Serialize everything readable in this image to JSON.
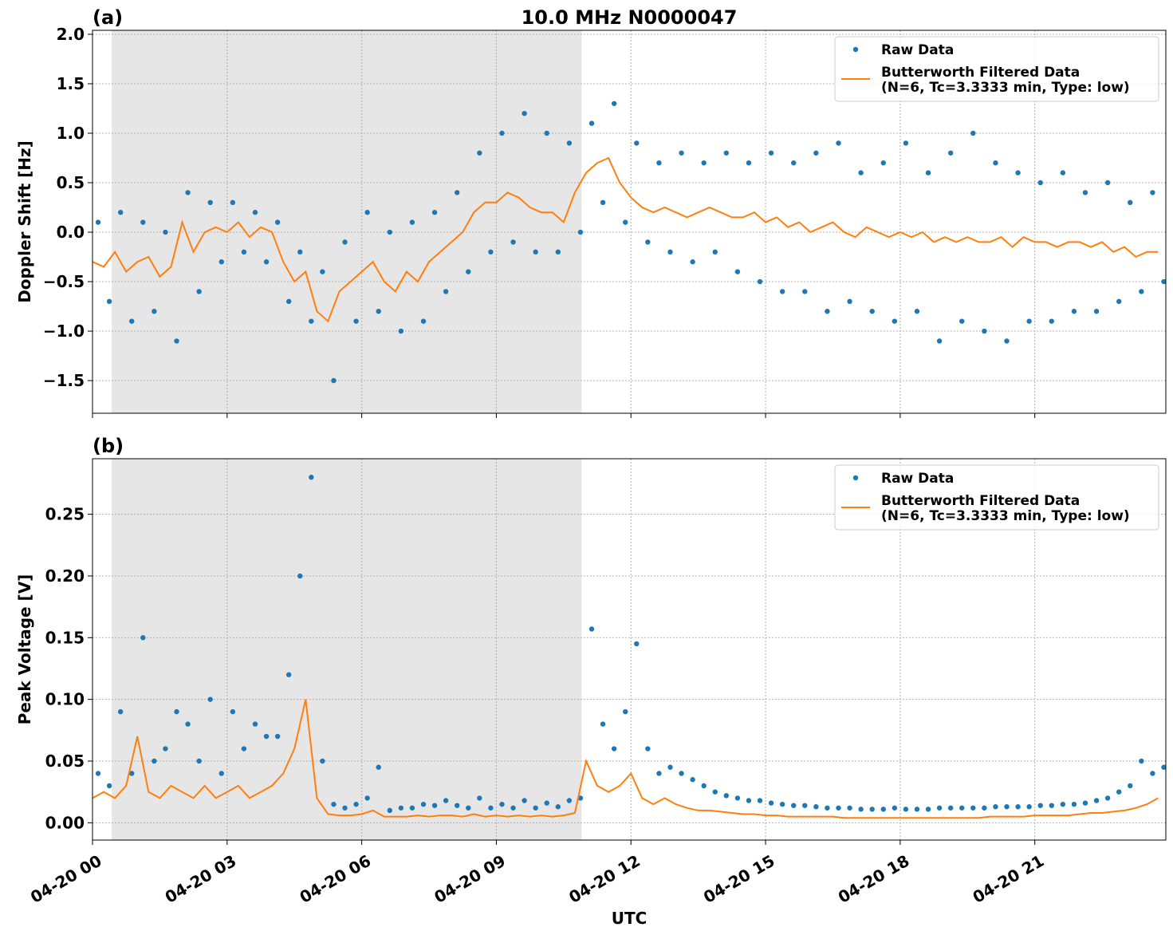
{
  "chart_data": [
    {
      "type": "scatter-line",
      "panel_label": "(a)",
      "title": "10.0 MHz N0000047",
      "ylabel": "Doppler Shift [Hz]",
      "xlim": [
        0,
        23.92
      ],
      "ylim": [
        -1.83,
        2.04
      ],
      "xticks": [
        0,
        3,
        6,
        9,
        12,
        15,
        18,
        21
      ],
      "yticks": [
        {
          "value": -1.5,
          "label": "−1.5"
        },
        {
          "value": -1,
          "label": "−1.0"
        },
        {
          "value": -0.5,
          "label": "−0.5"
        },
        {
          "value": 0,
          "label": "0.0"
        },
        0.5,
        {
          "value": 1,
          "label": "1.0"
        },
        1.5,
        {
          "value": 2,
          "label": "2.0"
        }
      ],
      "grid": true,
      "shaded_span": [
        0.43,
        10.9
      ],
      "shade_color": "#e6e6e6",
      "legend": "upper right",
      "series": [
        {
          "name": "Raw Data",
          "color": "#1f77b4",
          "style": "dots",
          "x": [
            0.125,
            0.375,
            0.625,
            0.875,
            1.125,
            1.375,
            1.625,
            1.875,
            2.125,
            2.375,
            2.625,
            2.875,
            3.125,
            3.375,
            3.625,
            3.875,
            4.125,
            4.375,
            4.625,
            4.875,
            5.125,
            5.375,
            5.625,
            5.875,
            6.125,
            6.375,
            6.625,
            6.875,
            7.125,
            7.375,
            7.625,
            7.875,
            8.125,
            8.375,
            8.625,
            8.875,
            9.125,
            9.375,
            9.625,
            9.875,
            10.125,
            10.375,
            10.625,
            10.875,
            11.125,
            11.375,
            11.625,
            11.875,
            12.125,
            12.375,
            12.625,
            12.875,
            13.125,
            13.375,
            13.625,
            13.875,
            14.125,
            14.375,
            14.625,
            14.875,
            15.125,
            15.375,
            15.625,
            15.875,
            16.125,
            16.375,
            16.625,
            16.875,
            17.125,
            17.375,
            17.625,
            17.875,
            18.125,
            18.375,
            18.625,
            18.875,
            19.125,
            19.375,
            19.625,
            19.875,
            20.125,
            20.375,
            20.625,
            20.875,
            21.125,
            21.375,
            21.625,
            21.875,
            22.125,
            22.375,
            22.625,
            22.875,
            23.125,
            23.375,
            23.625,
            23.875
          ],
          "values": [
            0.1,
            -0.7,
            0.2,
            -0.9,
            0.1,
            -0.8,
            0.0,
            -1.1,
            0.4,
            -0.6,
            0.3,
            -0.3,
            0.3,
            -0.2,
            0.2,
            -0.3,
            0.1,
            -0.7,
            -0.2,
            -0.9,
            -0.4,
            -1.5,
            -0.1,
            -0.9,
            0.2,
            -0.8,
            0.0,
            -1.0,
            0.1,
            -0.9,
            0.2,
            -0.6,
            0.4,
            -0.4,
            0.8,
            -0.2,
            1.0,
            -0.1,
            1.2,
            -0.2,
            1.0,
            -0.2,
            0.9,
            0.0,
            1.1,
            0.3,
            1.3,
            0.1,
            0.9,
            -0.1,
            0.7,
            -0.2,
            0.8,
            -0.3,
            0.7,
            -0.2,
            0.8,
            -0.4,
            0.7,
            -0.5,
            0.8,
            -0.6,
            0.7,
            -0.6,
            0.8,
            -0.8,
            0.9,
            -0.7,
            0.6,
            -0.8,
            0.7,
            -0.9,
            0.9,
            -0.8,
            0.6,
            -1.1,
            0.8,
            -0.9,
            1.0,
            -1.0,
            0.7,
            -1.1,
            0.6,
            -0.9,
            0.5,
            -0.9,
            0.6,
            -0.8,
            0.4,
            -0.8,
            0.5,
            -0.7,
            0.3,
            -0.6,
            0.4,
            -0.5
          ]
        },
        {
          "name": "Butterworth Filtered Data\n(N=6, Tc=3.3333 min, Type: low)",
          "color": "#ff7f0e",
          "style": "line",
          "x": [
            0,
            0.25,
            0.5,
            0.75,
            1,
            1.25,
            1.5,
            1.75,
            2,
            2.25,
            2.5,
            2.75,
            3,
            3.25,
            3.5,
            3.75,
            4,
            4.25,
            4.5,
            4.75,
            5,
            5.25,
            5.5,
            5.75,
            6,
            6.25,
            6.5,
            6.75,
            7,
            7.25,
            7.5,
            7.75,
            8,
            8.25,
            8.5,
            8.75,
            9,
            9.25,
            9.5,
            9.75,
            10,
            10.25,
            10.5,
            10.75,
            11,
            11.25,
            11.5,
            11.75,
            12,
            12.25,
            12.5,
            12.75,
            13,
            13.25,
            13.5,
            13.75,
            14,
            14.25,
            14.5,
            14.75,
            15,
            15.25,
            15.5,
            15.75,
            16,
            16.25,
            16.5,
            16.75,
            17,
            17.25,
            17.5,
            17.75,
            18,
            18.25,
            18.5,
            18.75,
            19,
            19.25,
            19.5,
            19.75,
            20,
            20.25,
            20.5,
            20.75,
            21,
            21.25,
            21.5,
            21.75,
            22,
            22.25,
            22.5,
            22.75,
            23,
            23.25,
            23.5,
            23.75
          ],
          "values": [
            -0.3,
            -0.35,
            -0.2,
            -0.4,
            -0.3,
            -0.25,
            -0.45,
            -0.35,
            0.1,
            -0.2,
            0.0,
            0.05,
            0.0,
            0.1,
            -0.05,
            0.05,
            0.0,
            -0.3,
            -0.5,
            -0.4,
            -0.8,
            -0.9,
            -0.6,
            -0.5,
            -0.4,
            -0.3,
            -0.5,
            -0.6,
            -0.4,
            -0.5,
            -0.3,
            -0.2,
            -0.1,
            0.0,
            0.2,
            0.3,
            0.3,
            0.4,
            0.35,
            0.25,
            0.2,
            0.2,
            0.1,
            0.4,
            0.6,
            0.7,
            0.75,
            0.5,
            0.35,
            0.25,
            0.2,
            0.25,
            0.2,
            0.15,
            0.2,
            0.25,
            0.2,
            0.15,
            0.15,
            0.2,
            0.1,
            0.15,
            0.05,
            0.1,
            0.0,
            0.05,
            0.1,
            0.0,
            -0.05,
            0.05,
            0.0,
            -0.05,
            0.0,
            -0.05,
            0.0,
            -0.1,
            -0.05,
            -0.1,
            -0.05,
            -0.1,
            -0.1,
            -0.05,
            -0.15,
            -0.05,
            -0.1,
            -0.1,
            -0.15,
            -0.1,
            -0.1,
            -0.15,
            -0.1,
            -0.2,
            -0.15,
            -0.25,
            -0.2,
            -0.2
          ]
        }
      ]
    },
    {
      "type": "scatter-line",
      "panel_label": "(b)",
      "ylabel": "Peak Voltage [V]",
      "xlabel": "UTC",
      "xlim": [
        0,
        23.92
      ],
      "ylim": [
        -0.014,
        0.295
      ],
      "xticks": [
        {
          "value": 0,
          "label": "04-20 00"
        },
        {
          "value": 3,
          "label": "04-20 03"
        },
        {
          "value": 6,
          "label": "04-20 06"
        },
        {
          "value": 9,
          "label": "04-20 09"
        },
        {
          "value": 12,
          "label": "04-20 12"
        },
        {
          "value": 15,
          "label": "04-20 15"
        },
        {
          "value": 18,
          "label": "04-20 18"
        },
        {
          "value": 21,
          "label": "04-20 21"
        }
      ],
      "yticks": [
        {
          "value": 0,
          "label": "0.00"
        },
        0.05,
        {
          "value": 0.1,
          "label": "0.10"
        },
        0.15,
        {
          "value": 0.2,
          "label": "0.20"
        },
        0.25
      ],
      "grid": true,
      "shaded_span": [
        0.43,
        10.9
      ],
      "shade_color": "#e6e6e6",
      "legend": "upper right",
      "series": [
        {
          "name": "Raw Data",
          "color": "#1f77b4",
          "style": "dots",
          "x": [
            0.125,
            0.375,
            0.625,
            0.875,
            1.125,
            1.375,
            1.625,
            1.875,
            2.125,
            2.375,
            2.625,
            2.875,
            3.125,
            3.375,
            3.625,
            3.875,
            4.125,
            4.375,
            4.625,
            4.875,
            5.125,
            5.375,
            5.625,
            5.875,
            6.125,
            6.375,
            6.625,
            6.875,
            7.125,
            7.375,
            7.625,
            7.875,
            8.125,
            8.375,
            8.625,
            8.875,
            9.125,
            9.375,
            9.625,
            9.875,
            10.125,
            10.375,
            10.625,
            10.875,
            11.125,
            11.375,
            11.625,
            11.875,
            12.125,
            12.375,
            12.625,
            12.875,
            13.125,
            13.375,
            13.625,
            13.875,
            14.125,
            14.375,
            14.625,
            14.875,
            15.125,
            15.375,
            15.625,
            15.875,
            16.125,
            16.375,
            16.625,
            16.875,
            17.125,
            17.375,
            17.625,
            17.875,
            18.125,
            18.375,
            18.625,
            18.875,
            19.125,
            19.375,
            19.625,
            19.875,
            20.125,
            20.375,
            20.625,
            20.875,
            21.125,
            21.375,
            21.625,
            21.875,
            22.125,
            22.375,
            22.625,
            22.875,
            23.125,
            23.375,
            23.625,
            23.875
          ],
          "values": [
            0.04,
            0.03,
            0.09,
            0.04,
            0.15,
            0.05,
            0.06,
            0.09,
            0.08,
            0.05,
            0.1,
            0.04,
            0.09,
            0.06,
            0.08,
            0.07,
            0.07,
            0.12,
            0.2,
            0.28,
            0.05,
            0.015,
            0.012,
            0.015,
            0.02,
            0.045,
            0.01,
            0.012,
            0.012,
            0.015,
            0.014,
            0.018,
            0.014,
            0.012,
            0.02,
            0.012,
            0.015,
            0.012,
            0.018,
            0.012,
            0.016,
            0.013,
            0.018,
            0.02,
            0.157,
            0.08,
            0.06,
            0.09,
            0.145,
            0.06,
            0.04,
            0.045,
            0.04,
            0.035,
            0.03,
            0.025,
            0.022,
            0.02,
            0.018,
            0.018,
            0.016,
            0.015,
            0.014,
            0.014,
            0.013,
            0.012,
            0.012,
            0.012,
            0.011,
            0.011,
            0.011,
            0.012,
            0.011,
            0.011,
            0.011,
            0.012,
            0.012,
            0.012,
            0.012,
            0.012,
            0.013,
            0.013,
            0.013,
            0.013,
            0.014,
            0.014,
            0.015,
            0.015,
            0.016,
            0.018,
            0.02,
            0.025,
            0.03,
            0.05,
            0.04,
            0.045
          ]
        },
        {
          "name": "Butterworth Filtered Data\n(N=6, Tc=3.3333 min, Type: low)",
          "color": "#ff7f0e",
          "style": "line",
          "x": [
            0,
            0.25,
            0.5,
            0.75,
            1,
            1.25,
            1.5,
            1.75,
            2,
            2.25,
            2.5,
            2.75,
            3,
            3.25,
            3.5,
            3.75,
            4,
            4.25,
            4.5,
            4.75,
            5,
            5.25,
            5.5,
            5.75,
            6,
            6.25,
            6.5,
            6.75,
            7,
            7.25,
            7.5,
            7.75,
            8,
            8.25,
            8.5,
            8.75,
            9,
            9.25,
            9.5,
            9.75,
            10,
            10.25,
            10.5,
            10.75,
            11,
            11.25,
            11.5,
            11.75,
            12,
            12.25,
            12.5,
            12.75,
            13,
            13.25,
            13.5,
            13.75,
            14,
            14.25,
            14.5,
            14.75,
            15,
            15.25,
            15.5,
            15.75,
            16,
            16.25,
            16.5,
            16.75,
            17,
            17.25,
            17.5,
            17.75,
            18,
            18.25,
            18.5,
            18.75,
            19,
            19.25,
            19.5,
            19.75,
            20,
            20.25,
            20.5,
            20.75,
            21,
            21.25,
            21.5,
            21.75,
            22,
            22.25,
            22.5,
            22.75,
            23,
            23.25,
            23.5,
            23.75
          ],
          "values": [
            0.02,
            0.025,
            0.02,
            0.03,
            0.07,
            0.025,
            0.02,
            0.03,
            0.025,
            0.02,
            0.03,
            0.02,
            0.025,
            0.03,
            0.02,
            0.025,
            0.03,
            0.04,
            0.06,
            0.1,
            0.02,
            0.007,
            0.006,
            0.006,
            0.007,
            0.01,
            0.005,
            0.005,
            0.005,
            0.006,
            0.005,
            0.006,
            0.006,
            0.005,
            0.007,
            0.005,
            0.006,
            0.005,
            0.006,
            0.005,
            0.006,
            0.005,
            0.006,
            0.008,
            0.05,
            0.03,
            0.025,
            0.03,
            0.04,
            0.02,
            0.015,
            0.02,
            0.015,
            0.012,
            0.01,
            0.01,
            0.009,
            0.008,
            0.007,
            0.007,
            0.006,
            0.006,
            0.005,
            0.005,
            0.005,
            0.005,
            0.005,
            0.004,
            0.004,
            0.004,
            0.004,
            0.004,
            0.004,
            0.004,
            0.004,
            0.004,
            0.004,
            0.004,
            0.004,
            0.004,
            0.005,
            0.005,
            0.005,
            0.005,
            0.006,
            0.006,
            0.006,
            0.006,
            0.007,
            0.008,
            0.008,
            0.009,
            0.01,
            0.012,
            0.015,
            0.02
          ]
        }
      ]
    }
  ]
}
